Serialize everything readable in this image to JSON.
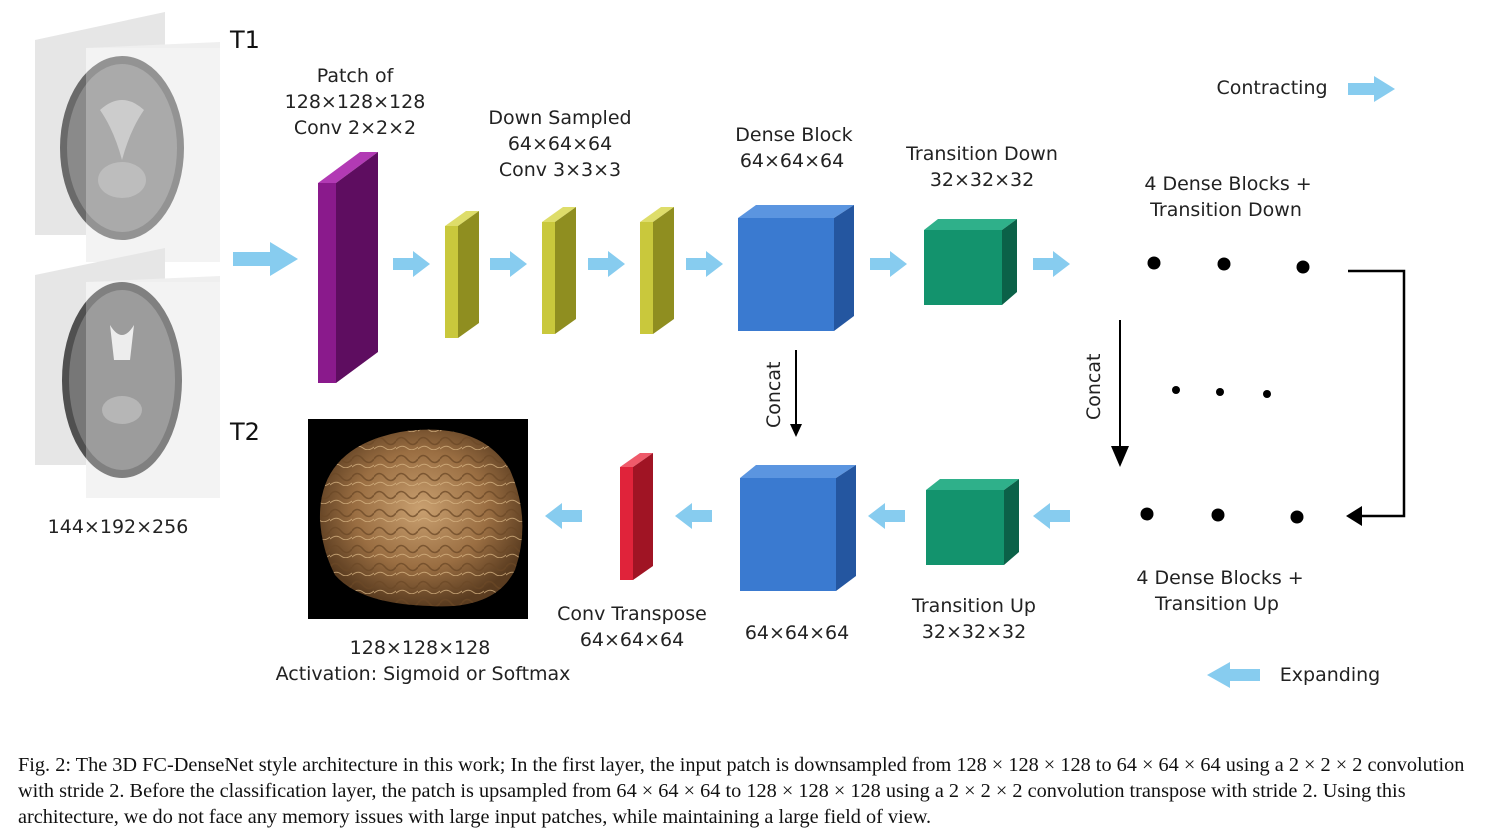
{
  "labels": {
    "t1": "T1",
    "t2": "T2",
    "input_size": "144×192×256",
    "patch_l1": "Patch of",
    "patch_l2": "128×128×128",
    "patch_l3": "Conv 2×2×2",
    "down_l1": "Down Sampled",
    "down_l2": "64×64×64",
    "down_l3": "Conv 3×3×3",
    "dense_l1": "Dense Block",
    "dense_l2": "64×64×64",
    "td_l1": "Transition Down",
    "td_l2": "32×32×32",
    "contracting": "Contracting",
    "blocks_down_l1": "4  Dense Blocks +",
    "blocks_down_l2": "Transition Down",
    "concat_left": "Concat",
    "concat_right": "Concat",
    "blocks_up_l1": "4  Dense Blocks +",
    "blocks_up_l2": "Transition Up",
    "expanding": "Expanding",
    "tu_l1": "Transition Up",
    "tu_l2": "32×32×32",
    "dense_up": "64×64×64",
    "convt_l1": "Conv Transpose",
    "convt_l2": "64×64×64",
    "out_l1": "128×128×128",
    "out_l2": "Activation: Sigmoid or Softmax"
  },
  "colors": {
    "arrow": "#87ccef",
    "purple_front": "#8a1a8c",
    "purple_side": "#5e0d60",
    "olive_front": "#c9c83c",
    "olive_side": "#8f8e20",
    "blue_front": "#3a7ad0",
    "blue_side": "#2456a0",
    "green_front": "#13936d",
    "green_side": "#0b6148",
    "red_front": "#e0233a",
    "red_side": "#a01424"
  },
  "caption": "Fig. 2: The 3D FC-DenseNet style architecture in this work; In the first layer, the input patch is downsampled from 128 × 128 × 128 to 64 × 64 × 64 using a 2 × 2 × 2 convolution with stride 2. Before the classification layer, the patch is upsampled from 64 × 64 × 64 to 128 × 128 × 128 using a 2 × 2 × 2 convolution transpose with stride 2. Using this architecture, we do not face any memory issues with large input patches, while maintaining a large field of view."
}
